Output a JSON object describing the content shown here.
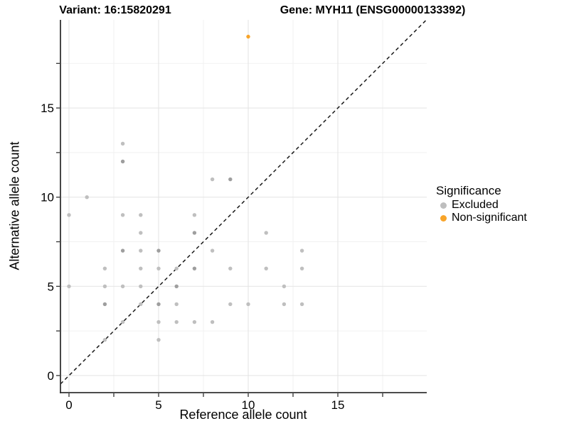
{
  "header": {
    "title_left": "Variant: 16:15820291",
    "title_right": "Gene: MYH11 (ENSG00000133392)"
  },
  "chart_data": {
    "type": "scatter",
    "xlabel": "Reference allele count",
    "ylabel": "Alternative allele count",
    "x_ticks": [
      0,
      5,
      10,
      15
    ],
    "y_ticks": [
      0,
      5,
      10,
      15
    ],
    "minor_ticks": [
      2.5,
      7.5,
      12.5,
      17.5
    ],
    "xlim": [
      -0.5,
      20
    ],
    "ylim": [
      -1,
      20
    ],
    "grid": true,
    "legend_position": "right",
    "identity_line": {
      "style": "dashed",
      "color": "#1a1a1a",
      "equation": "y = x"
    },
    "legend": {
      "title": "Significance",
      "entries": [
        {
          "label": "Excluded",
          "color": "#BEBEBE"
        },
        {
          "label": "Non-significant",
          "color": "#F8A429"
        }
      ]
    },
    "series": [
      {
        "name": "Excluded",
        "color": "#BFBFBF",
        "overlap_color": "#9E9E9E",
        "points": [
          [
            3,
            13
          ],
          [
            3,
            12,
            2
          ],
          [
            8,
            11
          ],
          [
            9,
            11,
            2
          ],
          [
            1,
            10
          ],
          [
            0,
            9
          ],
          [
            3,
            9
          ],
          [
            4,
            9
          ],
          [
            7,
            9
          ],
          [
            4,
            8
          ],
          [
            7,
            8,
            2
          ],
          [
            11,
            8
          ],
          [
            3,
            7,
            2
          ],
          [
            4,
            7
          ],
          [
            5,
            7,
            2
          ],
          [
            8,
            7
          ],
          [
            13,
            7
          ],
          [
            2,
            6
          ],
          [
            4,
            6
          ],
          [
            5,
            6
          ],
          [
            6,
            6
          ],
          [
            7,
            6,
            2
          ],
          [
            9,
            6
          ],
          [
            11,
            6
          ],
          [
            13,
            6
          ],
          [
            0,
            5
          ],
          [
            2,
            5
          ],
          [
            3,
            5
          ],
          [
            4,
            5
          ],
          [
            6,
            5,
            2
          ],
          [
            12,
            5
          ],
          [
            2,
            4,
            2
          ],
          [
            4,
            4
          ],
          [
            5,
            4,
            2
          ],
          [
            6,
            4
          ],
          [
            9,
            4
          ],
          [
            10,
            4
          ],
          [
            12,
            4
          ],
          [
            13,
            4
          ],
          [
            3,
            3
          ],
          [
            5,
            3
          ],
          [
            6,
            3
          ],
          [
            7,
            3
          ],
          [
            8,
            3
          ],
          [
            2,
            2
          ],
          [
            5,
            2
          ]
        ]
      },
      {
        "name": "Non-significant",
        "color": "#F8A429",
        "points": [
          [
            10,
            19
          ]
        ]
      }
    ]
  },
  "colors": {
    "grid_major": "#e3e3e3",
    "grid_minor": "#f1f1f1",
    "axis_line": "#333333",
    "tick": "#333333",
    "text": "#000000"
  }
}
